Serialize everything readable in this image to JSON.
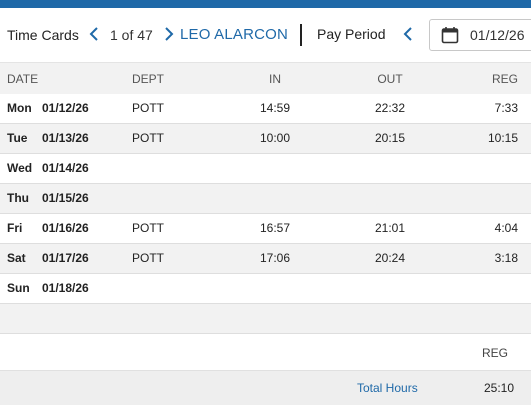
{
  "toolbar": {
    "title": "Time Cards",
    "counter": "1 of 47",
    "employee_name": "LEO ALARCON",
    "pay_period_label": "Pay Period",
    "date_value": "01/12/26"
  },
  "table": {
    "headers": {
      "date": "DATE",
      "dept": "DEPT",
      "in": "IN",
      "out": "OUT",
      "reg": "REG"
    },
    "rows": [
      {
        "day": "Mon",
        "date": "01/12/26",
        "dept": "POTT",
        "in": "14:59",
        "out": "22:32",
        "reg": "7:33"
      },
      {
        "day": "Tue",
        "date": "01/13/26",
        "dept": "POTT",
        "in": "10:00",
        "out": "20:15",
        "reg": "10:15"
      },
      {
        "day": "Wed",
        "date": "01/14/26",
        "dept": "",
        "in": "",
        "out": "",
        "reg": ""
      },
      {
        "day": "Thu",
        "date": "01/15/26",
        "dept": "",
        "in": "",
        "out": "",
        "reg": ""
      },
      {
        "day": "Fri",
        "date": "01/16/26",
        "dept": "POTT",
        "in": "16:57",
        "out": "21:01",
        "reg": "4:04"
      },
      {
        "day": "Sat",
        "date": "01/17/26",
        "dept": "POTT",
        "in": "17:06",
        "out": "20:24",
        "reg": "3:18"
      },
      {
        "day": "Sun",
        "date": "01/18/26",
        "dept": "",
        "in": "",
        "out": "",
        "reg": ""
      }
    ]
  },
  "summary": {
    "reg_label": "REG",
    "total_label": "Total Hours",
    "total_value": "25:10"
  },
  "colors": {
    "accent": "#1f69a8",
    "row_alt": "#f2f2f2",
    "summary_bg": "#eeeeee"
  },
  "icons": {
    "prev": "chevron-left-icon",
    "next": "chevron-right-icon",
    "calendar": "calendar-icon"
  }
}
